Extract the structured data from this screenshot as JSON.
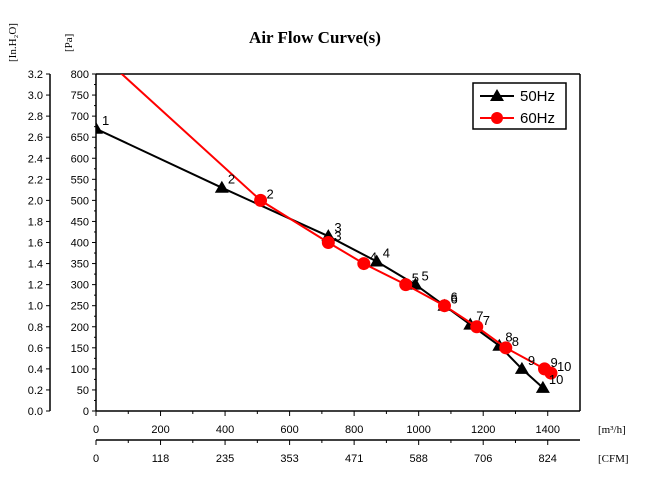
{
  "chart_data": {
    "type": "line",
    "title": "Air Flow Curve(s)",
    "y_left_unit_outer": "[In.H₂O]",
    "y_left_unit_inner": "[Pa]",
    "x_unit_top": "[m³/h]",
    "x_unit_bottom": "[CFM]",
    "x_ticks_m3h": [
      "0",
      "200",
      "400",
      "600",
      "800",
      "1000",
      "1200",
      "1400"
    ],
    "x_ticks_cfm": [
      "0",
      "118",
      "235",
      "353",
      "471",
      "588",
      "706",
      "824"
    ],
    "y_ticks_pa": [
      "0",
      "50",
      "100",
      "150",
      "200",
      "250",
      "300",
      "350",
      "400",
      "450",
      "500",
      "550",
      "600",
      "650",
      "700",
      "750",
      "800"
    ],
    "y_ticks_inh2o": [
      "0.0",
      "0.2",
      "0.4",
      "0.6",
      "0.8",
      "1.0",
      "1.2",
      "1.4",
      "1.6",
      "1.8",
      "2.0",
      "2.2",
      "2.4",
      "2.6",
      "2.8",
      "3.0",
      "3.2"
    ],
    "xlim": [
      0,
      1500
    ],
    "ylim": [
      0,
      800
    ],
    "series": [
      {
        "name": "50Hz",
        "color": "#000000",
        "marker": "triangle",
        "x": [
          0,
          390,
          720,
          870,
          990,
          1080,
          1160,
          1250,
          1320,
          1385
        ],
        "y": [
          670,
          530,
          415,
          355,
          300,
          250,
          205,
          155,
          100,
          55
        ],
        "labels": [
          "1",
          "2",
          "3",
          "4",
          "5",
          "6",
          "7",
          "8",
          "9",
          "10"
        ]
      },
      {
        "name": "60Hz",
        "color": "#ff0000",
        "marker": "circle",
        "x": [
          80,
          510,
          720,
          830,
          960,
          1080,
          1180,
          1270,
          1390,
          1410
        ],
        "y": [
          800,
          500,
          400,
          350,
          300,
          250,
          200,
          150,
          100,
          90
        ],
        "labels": [
          "1",
          "2",
          "3",
          "4",
          "5",
          "6",
          "7",
          "8",
          "9",
          "10"
        ]
      }
    ],
    "legend_position": "top-right"
  }
}
